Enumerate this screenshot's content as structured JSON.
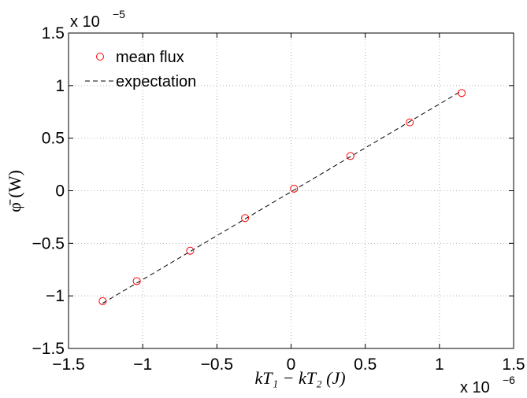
{
  "chart_data": {
    "type": "scatter",
    "xlabel": "kT₁ − kT₂ (J)",
    "ylabel": "φ̄ (W)",
    "x_multiplier": "x 10",
    "x_exponent": "−6",
    "y_multiplier": "x 10",
    "y_exponent": "−5",
    "xlim": [
      -1.5,
      1.5
    ],
    "ylim": [
      -1.5,
      1.5
    ],
    "xticks": [
      -1.5,
      -1,
      -0.5,
      0,
      0.5,
      1,
      1.5
    ],
    "xtick_labels": [
      "−1.5",
      "−1",
      "−0.5",
      "0",
      "0.5",
      "1",
      "1.5"
    ],
    "yticks": [
      -1.5,
      -1,
      -0.5,
      0,
      0.5,
      1,
      1.5
    ],
    "ytick_labels": [
      "−1.5",
      "−1",
      "−0.5",
      "0",
      "0.5",
      "1",
      "1.5"
    ],
    "grid": true,
    "legend_position": "top-left",
    "series": [
      {
        "name": "mean flux",
        "style": "markers",
        "marker": "open-circle",
        "color": "#ff0000",
        "x": [
          -1.27,
          -1.04,
          -0.68,
          -0.31,
          0.02,
          0.4,
          0.8,
          1.15
        ],
        "y": [
          -1.05,
          -0.86,
          -0.57,
          -0.26,
          0.02,
          0.33,
          0.65,
          0.93
        ]
      },
      {
        "name": "expectation",
        "style": "dashed-line",
        "color": "#000000",
        "x": [
          -1.27,
          1.15
        ],
        "y": [
          -1.07,
          0.95
        ]
      }
    ]
  }
}
